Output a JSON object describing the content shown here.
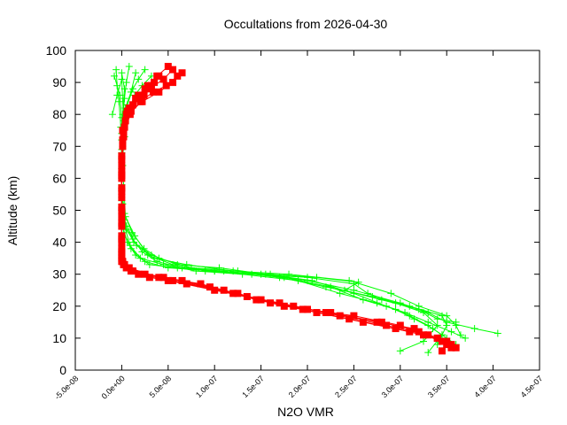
{
  "chart_data": {
    "type": "scatter",
    "title": "Occultations from 2026-04-30",
    "xlabel": "N2O VMR",
    "ylabel": "Altitude (km)",
    "xlim": [
      -5e-08,
      4.5e-07
    ],
    "ylim": [
      0,
      100
    ],
    "x_ticks": [
      -5e-08,
      0,
      5e-08,
      1e-07,
      1.5e-07,
      2e-07,
      2.5e-07,
      3e-07,
      3.5e-07,
      4e-07,
      4.5e-07
    ],
    "x_tick_labels": [
      "-5.0e-08",
      "0.0e+00",
      "5.0e-08",
      "1.0e-07",
      "1.5e-07",
      "2.0e-07",
      "2.5e-07",
      "3.0e-07",
      "3.5e-07",
      "4.0e-07",
      "4.5e-07"
    ],
    "y_ticks": [
      0,
      10,
      20,
      30,
      40,
      50,
      60,
      70,
      80,
      90,
      100
    ],
    "y_tick_labels": [
      "0",
      "10",
      "20",
      "30",
      "40",
      "50",
      "60",
      "70",
      "80",
      "90",
      "100"
    ],
    "grid": false,
    "legend": "none",
    "series": [
      {
        "color": "#00ff00",
        "marker": "plus",
        "profiles": [
          [
            [
              0.0,
              93
            ],
            [
              3e-09,
              88
            ],
            [
              1e-09,
              80
            ],
            [
              0.0,
              72
            ],
            [
              0.0,
              62
            ],
            [
              0.0,
              50
            ],
            [
              2e-09,
              43
            ],
            [
              1e-08,
              38
            ],
            [
              2.5e-08,
              34
            ],
            [
              5e-08,
              32
            ],
            [
              1e-07,
              31
            ],
            [
              1.5e-07,
              30
            ],
            [
              2e-07,
              28
            ],
            [
              2.5e-07,
              25
            ],
            [
              3e-07,
              21
            ],
            [
              3.3e-07,
              18
            ],
            [
              3.5e-07,
              15
            ],
            [
              3.8e-07,
              13
            ],
            [
              4.05e-07,
              11.5
            ]
          ],
          [
            [
              -6e-09,
              94
            ],
            [
              -5e-09,
              89
            ],
            [
              -3e-09,
              84
            ],
            [
              -1e-09,
              76
            ],
            [
              0.0,
              66
            ],
            [
              0.0,
              54
            ],
            [
              1e-09,
              45
            ],
            [
              6e-09,
              40
            ],
            [
              1.5e-08,
              36
            ],
            [
              3e-08,
              33
            ],
            [
              6e-08,
              32
            ],
            [
              1e-07,
              31
            ],
            [
              1.6e-07,
              30
            ],
            [
              2.1e-07,
              29
            ],
            [
              2.55e-07,
              27.5
            ],
            [
              2.4e-07,
              25
            ],
            [
              2.8e-07,
              22
            ],
            [
              3.2e-07,
              19
            ],
            [
              3.4e-07,
              16
            ],
            [
              3.6e-07,
              15
            ]
          ],
          [
            [
              8e-09,
              95
            ],
            [
              5e-09,
              90
            ],
            [
              3e-09,
              85
            ],
            [
              0.0,
              74
            ],
            [
              0.0,
              58
            ],
            [
              3e-09,
              47
            ],
            [
              1.2e-08,
              41
            ],
            [
              2.2e-08,
              37
            ],
            [
              3.8e-08,
              34
            ],
            [
              6.5e-08,
              32
            ],
            [
              1.1e-07,
              31
            ],
            [
              1.7e-07,
              29
            ],
            [
              2.2e-07,
              26
            ],
            [
              2.7e-07,
              23
            ],
            [
              3.1e-07,
              20
            ],
            [
              3.45e-07,
              17
            ],
            [
              3.5e-07,
              14
            ],
            [
              3.45e-07,
              11
            ],
            [
              3.4e-07,
              8
            ]
          ],
          [
            [
              1.5e-08,
              93
            ],
            [
              1e-08,
              87
            ],
            [
              4e-09,
              82
            ],
            [
              1e-09,
              70
            ],
            [
              0.0,
              56
            ],
            [
              2e-09,
              46
            ],
            [
              9e-09,
              39
            ],
            [
              2e-08,
              35
            ],
            [
              4.5e-08,
              33
            ],
            [
              8e-08,
              31
            ],
            [
              1.3e-07,
              30
            ],
            [
              1.9e-07,
              28
            ],
            [
              2.35e-07,
              24
            ],
            [
              2.75e-07,
              21
            ],
            [
              3.05e-07,
              18
            ],
            [
              3.3e-07,
              15
            ],
            [
              3.55e-07,
              12
            ],
            [
              3.7e-07,
              10
            ]
          ],
          [
            [
              -1e-08,
              80
            ],
            [
              -5e-09,
              86
            ],
            [
              0.0,
              91
            ],
            [
              2e-09,
              78
            ],
            [
              1e-09,
              64
            ],
            [
              4e-09,
              48
            ],
            [
              1.4e-08,
              42
            ],
            [
              2.8e-08,
              36
            ],
            [
              5.5e-08,
              33
            ],
            [
              9e-08,
              31
            ],
            [
              1.4e-07,
              30
            ],
            [
              2e-07,
              29
            ],
            [
              2.5e-07,
              27
            ],
            [
              2.65e-07,
              24
            ],
            [
              2.95e-07,
              21
            ],
            [
              3.25e-07,
              18
            ],
            [
              3.4e-07,
              14
            ],
            [
              3.25e-07,
              9
            ],
            [
              3e-07,
              6
            ]
          ],
          [
            [
              2.5e-08,
              94
            ],
            [
              1.8e-08,
              91
            ],
            [
              1.2e-08,
              88
            ],
            [
              6e-09,
              83
            ],
            [
              2e-09,
              75
            ],
            [
              0.0,
              68
            ],
            [
              0.0,
              60
            ],
            [
              1e-09,
              52
            ],
            [
              5e-09,
              44
            ],
            [
              1.6e-08,
              39
            ],
            [
              3.5e-08,
              35
            ],
            [
              7e-08,
              33
            ],
            [
              1.2e-07,
              31
            ],
            [
              1.8e-07,
              30
            ],
            [
              2.45e-07,
              28
            ],
            [
              2.9e-07,
              24
            ],
            [
              3.2e-07,
              20
            ],
            [
              3.5e-07,
              17
            ],
            [
              3.6e-07,
              14
            ],
            [
              3.65e-07,
              11
            ]
          ],
          [
            [
              -8e-09,
              92
            ],
            [
              -2e-09,
              86
            ],
            [
              0.0,
              79
            ],
            [
              0.0,
              69
            ],
            [
              0.0,
              57
            ],
            [
              3e-09,
              49
            ],
            [
              1.1e-08,
              43
            ],
            [
              2.4e-08,
              38
            ],
            [
              4e-08,
              35
            ],
            [
              7.5e-08,
              32
            ],
            [
              1.25e-07,
              31
            ],
            [
              1.75e-07,
              29
            ],
            [
              2.25e-07,
              26
            ],
            [
              2.6e-07,
              22
            ],
            [
              2.95e-07,
              19
            ],
            [
              3.15e-07,
              16
            ],
            [
              3.35e-07,
              13
            ],
            [
              3.5e-07,
              10
            ],
            [
              3.6e-07,
              8
            ]
          ],
          [
            [
              3.2e-08,
              92
            ],
            [
              2.2e-08,
              89
            ],
            [
              1.4e-08,
              86
            ],
            [
              7e-09,
              81
            ],
            [
              3e-09,
              73
            ],
            [
              0.0,
              63
            ],
            [
              0.0,
              53
            ],
            [
              4e-09,
              45
            ],
            [
              1.3e-08,
              40
            ],
            [
              3.2e-08,
              36
            ],
            [
              6e-08,
              33
            ],
            [
              1.05e-07,
              32
            ],
            [
              1.55e-07,
              30
            ],
            [
              2.05e-07,
              28
            ],
            [
              2.5e-07,
              24
            ],
            [
              2.85e-07,
              20
            ],
            [
              3.1e-07,
              17
            ],
            [
              3.3e-07,
              14
            ],
            [
              3.45e-07,
              11
            ],
            [
              3.3e-07,
              5.5
            ]
          ]
        ]
      },
      {
        "color": "#ff0000",
        "marker": "filled-square",
        "profiles": [
          [
            [
              5.5e-08,
              94
            ],
            [
              4.5e-08,
              91
            ],
            [
              3e-08,
              88
            ],
            [
              1.5e-08,
              85
            ],
            [
              5e-09,
              80
            ],
            [
              1e-09,
              72
            ],
            [
              0.0,
              62
            ],
            [
              0.0,
              50
            ],
            [
              0.0,
              40
            ],
            [
              0.0,
              34
            ],
            [
              1e-08,
              31
            ],
            [
              5e-08,
              28
            ],
            [
              1e-07,
              25
            ],
            [
              1.5e-07,
              22
            ],
            [
              2e-07,
              19
            ],
            [
              2.5e-07,
              17
            ],
            [
              3e-07,
              14
            ],
            [
              3.4e-07,
              10
            ],
            [
              3.6e-07,
              7
            ]
          ],
          [
            [
              6.5e-08,
              93
            ],
            [
              5.5e-08,
              90
            ],
            [
              4e-08,
              87
            ],
            [
              2.2e-08,
              84
            ],
            [
              1e-08,
              81
            ],
            [
              3e-09,
              76
            ],
            [
              0.0,
              66
            ],
            [
              0.0,
              56
            ],
            [
              0.0,
              46
            ],
            [
              0.0,
              36
            ],
            [
              5e-09,
              32
            ],
            [
              3e-08,
              29
            ],
            [
              7e-08,
              27
            ],
            [
              1.2e-07,
              24
            ],
            [
              1.7e-07,
              21
            ],
            [
              2.2e-07,
              18
            ],
            [
              2.8e-07,
              15
            ],
            [
              3.2e-07,
              12
            ],
            [
              3.55e-07,
              8
            ]
          ],
          [
            [
              4e-08,
              92
            ],
            [
              3.2e-08,
              89
            ],
            [
              2.4e-08,
              86
            ],
            [
              1.2e-08,
              83
            ],
            [
              4e-09,
              78
            ],
            [
              1e-09,
              70
            ],
            [
              0.0,
              60
            ],
            [
              0.0,
              48
            ],
            [
              0.0,
              38
            ],
            [
              2e-09,
              33
            ],
            [
              1.8e-08,
              30
            ],
            [
              5.5e-08,
              28
            ],
            [
              1.1e-07,
              25
            ],
            [
              1.6e-07,
              21
            ],
            [
              2.1e-07,
              18
            ],
            [
              2.6e-07,
              15
            ],
            [
              3.1e-07,
              12
            ],
            [
              3.5e-07,
              9
            ],
            [
              3.45e-07,
              6
            ]
          ],
          [
            [
              5e-08,
              95
            ],
            [
              3.8e-08,
              92
            ],
            [
              2.8e-08,
              89
            ],
            [
              1.8e-08,
              86
            ],
            [
              8e-09,
              82
            ],
            [
              2e-09,
              74
            ],
            [
              0.0,
              64
            ],
            [
              0.0,
              54
            ],
            [
              0.0,
              42
            ],
            [
              0.0,
              35
            ],
            [
              8e-09,
              32
            ],
            [
              4e-08,
              29
            ],
            [
              8.5e-08,
              27
            ],
            [
              1.35e-07,
              23
            ],
            [
              1.85e-07,
              20
            ],
            [
              2.35e-07,
              17
            ],
            [
              2.85e-07,
              14
            ],
            [
              3.3e-07,
              11
            ],
            [
              3.5e-07,
              8
            ]
          ],
          [
            [
              3.5e-08,
              90
            ],
            [
              2.5e-08,
              88
            ],
            [
              1.6e-08,
              85
            ],
            [
              6e-09,
              81
            ],
            [
              1e-09,
              75
            ],
            [
              0.0,
              67
            ],
            [
              0.0,
              57
            ],
            [
              0.0,
              45
            ],
            [
              0.0,
              37
            ],
            [
              3e-09,
              33
            ],
            [
              2.5e-08,
              30
            ],
            [
              6.5e-08,
              28
            ],
            [
              1.25e-07,
              24
            ],
            [
              1.75e-07,
              20
            ],
            [
              2.25e-07,
              18
            ],
            [
              2.75e-07,
              15
            ],
            [
              3.15e-07,
              13
            ],
            [
              3.4e-07,
              10
            ],
            [
              3.55e-07,
              7
            ]
          ],
          [
            [
              6e-08,
              92
            ],
            [
              4.8e-08,
              89
            ],
            [
              3.4e-08,
              87
            ],
            [
              2e-08,
              84
            ],
            [
              9e-09,
              80
            ],
            [
              2e-09,
              73
            ],
            [
              0.0,
              61
            ],
            [
              0.0,
              51
            ],
            [
              0.0,
              41
            ],
            [
              1e-09,
              34
            ],
            [
              1.2e-08,
              31
            ],
            [
              4.5e-08,
              29
            ],
            [
              9.5e-08,
              26
            ],
            [
              1.45e-07,
              22
            ],
            [
              1.95e-07,
              19
            ],
            [
              2.45e-07,
              16
            ],
            [
              2.95e-07,
              13
            ],
            [
              3.25e-07,
              11
            ],
            [
              3.45e-07,
              9
            ]
          ]
        ]
      }
    ]
  }
}
